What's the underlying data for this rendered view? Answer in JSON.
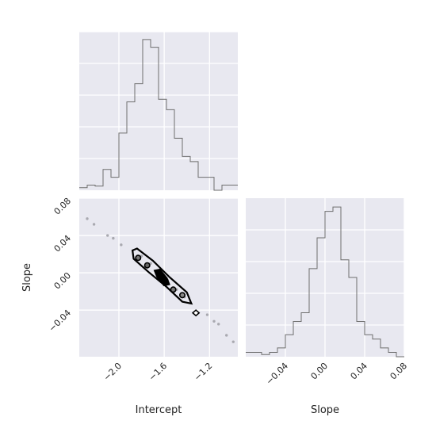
{
  "chart_data": [
    {
      "panel": "intercept-marginal",
      "type": "histogram",
      "xlim": [
        -2.35,
        -0.95
      ],
      "bin_edges": [
        -2.35,
        -2.28,
        -2.21,
        -2.14,
        -2.07,
        -2.0,
        -1.93,
        -1.86,
        -1.79,
        -1.72,
        -1.65,
        -1.58,
        -1.51,
        -1.44,
        -1.37,
        -1.3,
        -1.23,
        -1.16,
        -1.09,
        -1.02,
        -0.95
      ],
      "counts": [
        0.5,
        1,
        0.8,
        4,
        2.5,
        11,
        17,
        20.5,
        29,
        27.5,
        17.5,
        15.5,
        10,
        6.5,
        5.5,
        2.5,
        2.5,
        0,
        1,
        1
      ],
      "grid": true
    },
    {
      "panel": "joint-contour",
      "type": "scatter",
      "xlabel": "Intercept",
      "ylabel": "Slope",
      "xlim": [
        -2.35,
        -0.95
      ],
      "ylim": [
        -0.09,
        0.08
      ],
      "xticks": [
        "−2.0",
        "−1.6",
        "−1.2"
      ],
      "xtick_values": [
        -2.0,
        -1.6,
        -1.2
      ],
      "yticks": [
        "−0.04",
        "0.00",
        "0.04",
        "0.08"
      ],
      "ytick_values": [
        -0.04,
        0.0,
        0.04,
        0.08
      ],
      "scatter_points": [
        {
          "x": -2.28,
          "y": 0.058
        },
        {
          "x": -2.22,
          "y": 0.052
        },
        {
          "x": -2.1,
          "y": 0.04
        },
        {
          "x": -2.05,
          "y": 0.037
        },
        {
          "x": -1.98,
          "y": 0.03
        },
        {
          "x": -1.22,
          "y": -0.045
        },
        {
          "x": -1.16,
          "y": -0.052
        },
        {
          "x": -1.12,
          "y": -0.055
        },
        {
          "x": -1.05,
          "y": -0.067
        },
        {
          "x": -0.99,
          "y": -0.074
        },
        {
          "x": -1.8,
          "y": 0.018
        },
        {
          "x": -1.72,
          "y": 0.01
        },
        {
          "x": -1.65,
          "y": 0.002
        },
        {
          "x": -1.57,
          "y": -0.008
        },
        {
          "x": -1.49,
          "y": -0.018
        },
        {
          "x": -1.42,
          "y": -0.026
        }
      ],
      "contour_outer": [
        [
          -1.88,
          0.024
        ],
        [
          -1.84,
          0.026
        ],
        [
          -1.7,
          0.013
        ],
        [
          -1.55,
          -0.005
        ],
        [
          -1.4,
          -0.021
        ],
        [
          -1.36,
          -0.033
        ],
        [
          -1.44,
          -0.031
        ],
        [
          -1.58,
          -0.015
        ],
        [
          -1.74,
          0.001
        ],
        [
          -1.87,
          0.015
        ],
        [
          -1.88,
          0.024
        ]
      ],
      "contour_inner_blob": [
        [
          -1.68,
          0.002
        ],
        [
          -1.64,
          0.003
        ],
        [
          -1.58,
          -0.006
        ],
        [
          -1.56,
          -0.012
        ],
        [
          -1.6,
          -0.013
        ],
        [
          -1.66,
          -0.004
        ],
        [
          -1.68,
          0.002
        ]
      ],
      "isolated_contour": {
        "x": -1.32,
        "y": -0.043
      },
      "grid": true
    },
    {
      "panel": "slope-marginal",
      "type": "histogram",
      "xlabel": "Slope",
      "xlim": [
        -0.08,
        0.08
      ],
      "xticks": [
        "−0.04",
        "0.00",
        "0.04",
        "0.08"
      ],
      "xtick_values": [
        -0.04,
        0.0,
        0.04,
        0.08
      ],
      "bin_edges": [
        -0.08,
        -0.072,
        -0.064,
        -0.056,
        -0.048,
        -0.04,
        -0.032,
        -0.024,
        -0.016,
        -0.008,
        0.0,
        0.008,
        0.016,
        0.024,
        0.032,
        0.04,
        0.048,
        0.056,
        0.064,
        0.072,
        0.08
      ],
      "counts": [
        1,
        1,
        0.5,
        1,
        2,
        5,
        8,
        10,
        20,
        27,
        33,
        34,
        22,
        18,
        8,
        5,
        4,
        2,
        1,
        0
      ],
      "grid": true
    }
  ]
}
